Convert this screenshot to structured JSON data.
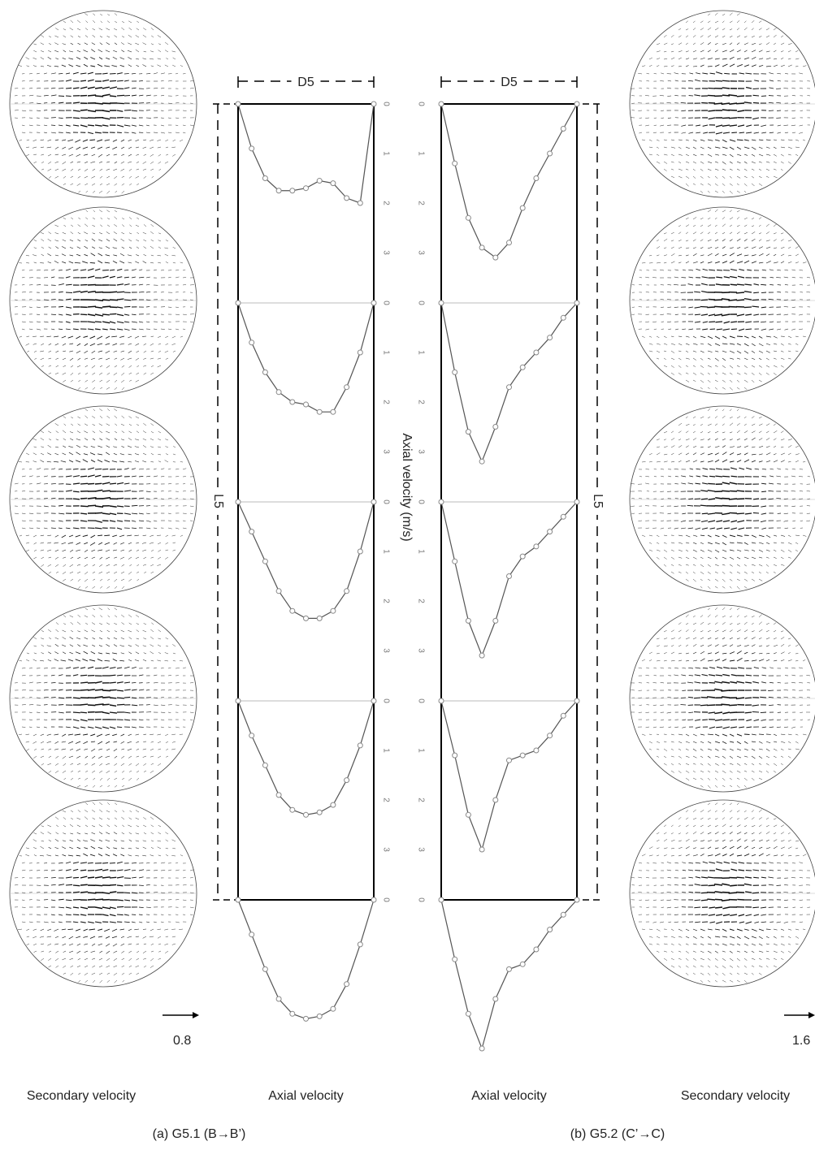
{
  "axis_title": "Axial velocity (m/s)",
  "velocity_ticks": [
    0,
    1,
    2,
    3
  ],
  "positions": [
    0,
    0.1,
    0.2,
    0.3,
    0.4,
    0.5,
    0.6,
    0.7,
    0.8,
    0.9,
    1
  ],
  "panels": [
    {
      "caption": "(a) G5.1 (B→B’)",
      "secondary_label": "Secondary velocity",
      "axial_label": "Axial velocity",
      "diameter_label": "D5",
      "length_label": "L5",
      "scale_label": "0.8",
      "profiles": [
        [
          0,
          0.9,
          1.5,
          1.75,
          1.75,
          1.7,
          1.55,
          1.6,
          1.9,
          2.0,
          0
        ],
        [
          0,
          0.8,
          1.4,
          1.8,
          2.0,
          2.05,
          2.2,
          2.2,
          1.7,
          1.0,
          0
        ],
        [
          0,
          0.6,
          1.2,
          1.8,
          2.2,
          2.35,
          2.35,
          2.2,
          1.8,
          1.0,
          0
        ],
        [
          0,
          0.7,
          1.3,
          1.9,
          2.2,
          2.3,
          2.25,
          2.1,
          1.6,
          0.9,
          0
        ],
        [
          0,
          0.7,
          1.4,
          2.0,
          2.3,
          2.4,
          2.35,
          2.2,
          1.7,
          0.9,
          0
        ]
      ]
    },
    {
      "caption": "(b) G5.2 (C’→C)",
      "secondary_label": "Secondary velocity",
      "axial_label": "Axial velocity",
      "diameter_label": "D5",
      "length_label": "L5",
      "scale_label": "1.6",
      "profiles": [
        [
          0,
          1.2,
          2.3,
          2.9,
          3.1,
          2.8,
          2.1,
          1.5,
          1.0,
          0.5,
          0
        ],
        [
          0,
          1.4,
          2.6,
          3.2,
          2.5,
          1.7,
          1.3,
          1.0,
          0.7,
          0.3,
          0
        ],
        [
          0,
          1.2,
          2.4,
          3.1,
          2.4,
          1.5,
          1.1,
          0.9,
          0.6,
          0.3,
          0
        ],
        [
          0,
          1.1,
          2.3,
          3.0,
          2.0,
          1.2,
          1.1,
          1.0,
          0.7,
          0.3,
          0
        ],
        [
          0,
          1.2,
          2.3,
          3.0,
          2.0,
          1.4,
          1.3,
          1.0,
          0.6,
          0.3,
          0
        ]
      ]
    }
  ]
}
